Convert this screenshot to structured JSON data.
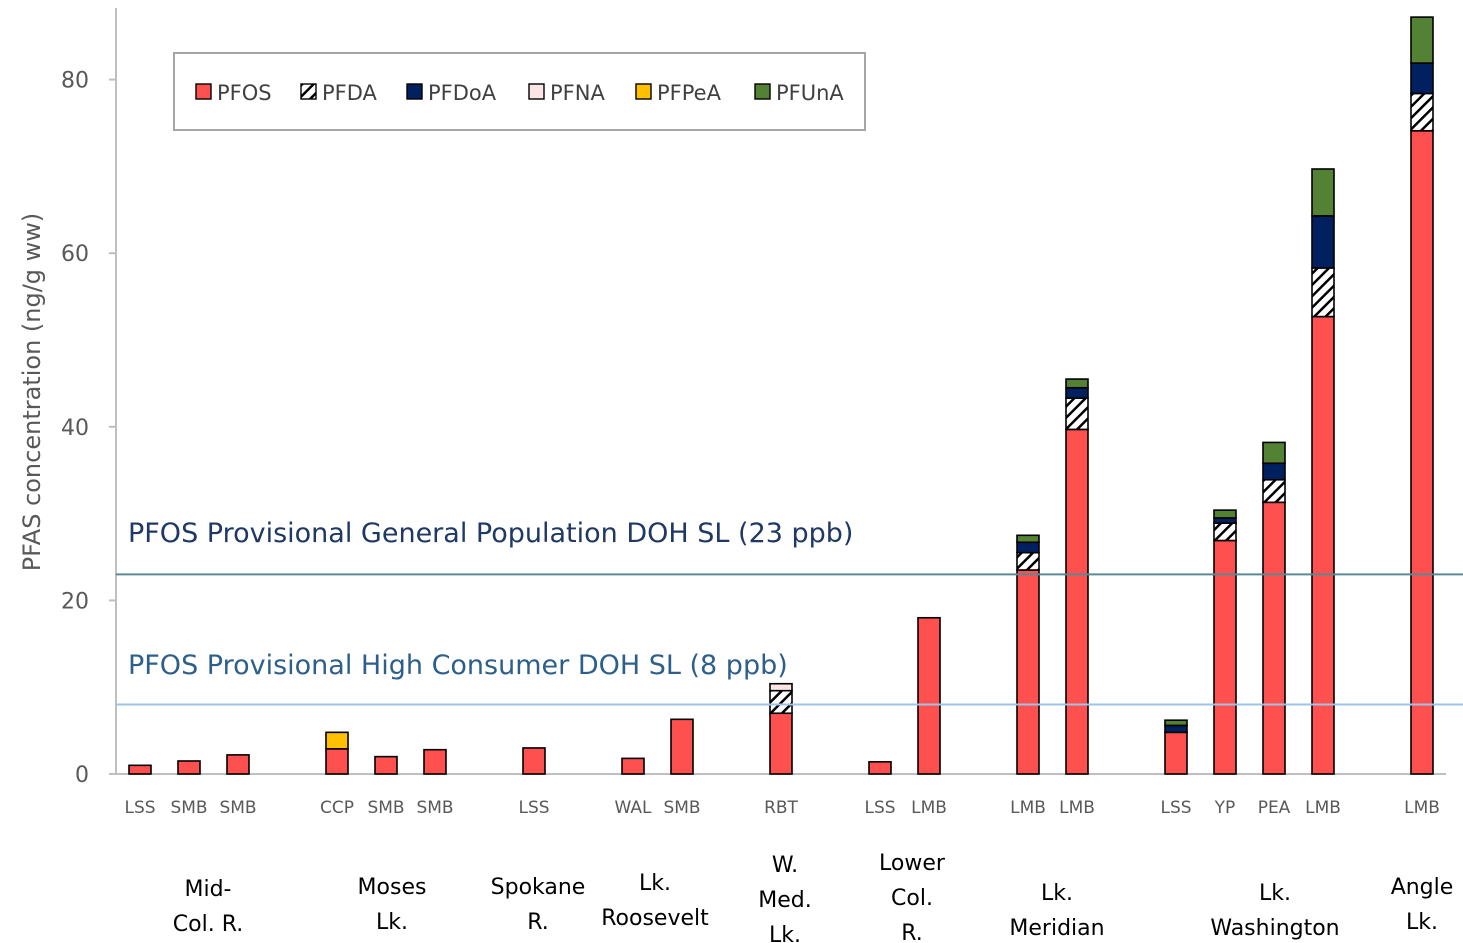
{
  "chart_data": {
    "type": "bar",
    "stacked": true,
    "ylabel": "PFAS concentration (ng/g ww)",
    "ylim": [
      0,
      88
    ],
    "yticks": [
      0,
      20,
      40,
      60,
      80
    ],
    "legend": {
      "position": "top-left",
      "items": [
        {
          "name": "PFOS",
          "color": "#ff5050",
          "pattern": "solid"
        },
        {
          "name": "PFDA",
          "color": "#ffffff",
          "pattern": "hatch"
        },
        {
          "name": "PFDoA",
          "color": "#002060",
          "pattern": "solid"
        },
        {
          "name": "PFNA",
          "color": "#fbe5e5",
          "pattern": "solid"
        },
        {
          "name": "PFPeA",
          "color": "#ffc000",
          "pattern": "solid"
        },
        {
          "name": "PFUnA",
          "color": "#548235",
          "pattern": "solid"
        }
      ]
    },
    "categories": [
      "LSS",
      "SMB",
      "SMB",
      "CCP",
      "SMB",
      "SMB",
      "LSS",
      "WAL",
      "SMB",
      "RBT",
      "LSS",
      "LMB",
      "LMB",
      "LMB",
      "LSS",
      "YP",
      "PEA",
      "LMB",
      "LMB"
    ],
    "groups": [
      {
        "lines": [
          "Mid-",
          "Col. R."
        ],
        "start": 0,
        "end": 2
      },
      {
        "lines": [
          "Moses",
          "Lk."
        ],
        "start": 3,
        "end": 5
      },
      {
        "lines": [
          "Spokane",
          "R."
        ],
        "start": 6,
        "end": 6
      },
      {
        "lines": [
          "Lk.",
          "Roosevelt"
        ],
        "start": 7,
        "end": 8
      },
      {
        "lines": [
          "W.",
          "Med.",
          "Lk."
        ],
        "start": 9,
        "end": 9
      },
      {
        "lines": [
          "Lower",
          "Col.",
          "R."
        ],
        "start": 10,
        "end": 11
      },
      {
        "lines": [
          "Lk.",
          "Meridian"
        ],
        "start": 12,
        "end": 13
      },
      {
        "lines": [
          "Lk.",
          "Washington"
        ],
        "start": 14,
        "end": 17
      },
      {
        "lines": [
          "Angle",
          "Lk."
        ],
        "start": 18,
        "end": 18
      }
    ],
    "series": [
      {
        "name": "PFOS",
        "values": [
          1.0,
          1.5,
          2.2,
          2.9,
          2.0,
          2.8,
          3.0,
          1.8,
          6.3,
          7.0,
          1.4,
          18.0,
          23.5,
          39.7,
          4.8,
          26.9,
          31.3,
          52.7,
          74.1
        ]
      },
      {
        "name": "PFDA",
        "values": [
          0,
          0,
          0,
          0,
          0,
          0,
          0,
          0,
          0,
          2.6,
          0,
          0,
          2.0,
          3.6,
          0,
          2.0,
          2.6,
          5.6,
          4.3
        ]
      },
      {
        "name": "PFDoA",
        "values": [
          0,
          0,
          0,
          0,
          0,
          0,
          0,
          0,
          0,
          0,
          0,
          0,
          1.2,
          1.2,
          0.8,
          0.6,
          1.9,
          6.0,
          3.5
        ]
      },
      {
        "name": "PFNA",
        "values": [
          0,
          0,
          0,
          0,
          0,
          0,
          0,
          0,
          0,
          0.8,
          0,
          0,
          0,
          0,
          0,
          0,
          0,
          0,
          0
        ]
      },
      {
        "name": "PFPeA",
        "values": [
          0,
          0,
          0,
          1.9,
          0,
          0,
          0,
          0,
          0,
          0,
          0,
          0,
          0,
          0,
          0,
          0,
          0,
          0,
          0
        ]
      },
      {
        "name": "PFUnA",
        "values": [
          0,
          0,
          0,
          0,
          0,
          0,
          0,
          0,
          0,
          0,
          0,
          0,
          0.8,
          1.0,
          0.6,
          0.9,
          2.4,
          5.4,
          5.3
        ]
      }
    ],
    "reference_lines": [
      {
        "label": "PFOS Provisional General Population DOH SL (23 ppb)",
        "value": 23,
        "line_color": "#5b8a94",
        "text_color": "#1f3864"
      },
      {
        "label": "PFOS Provisional High Consumer DOH SL (8 ppb)",
        "value": 8,
        "line_color": "#9dc3e6",
        "text_color": "#2e5f8a"
      }
    ],
    "grid": false
  }
}
